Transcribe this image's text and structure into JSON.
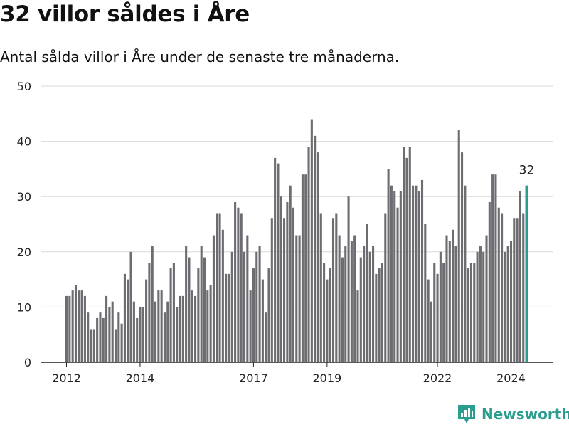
{
  "header": {
    "title": "32 villor såldes i Åre",
    "subtitle": "Antal sålda villor i Åre under de senaste tre månaderna."
  },
  "brand": {
    "name": "Newsworthy",
    "color": "#2a9d8f"
  },
  "chart_data": {
    "type": "bar",
    "title": "32 villor såldes i Åre",
    "subtitle": "Antal sålda villor i Åre under de senaste tre månaderna.",
    "xlabel": "",
    "ylabel": "",
    "ylim": [
      0,
      50
    ],
    "yticks": [
      0,
      10,
      20,
      30,
      40,
      50
    ],
    "xticks": [
      "2012",
      "2014",
      "2017",
      "2019",
      "2022",
      "2024"
    ],
    "grid": true,
    "legend": "none",
    "bar_color": "#6d6c71",
    "highlight_color": "#2a9d8f",
    "highlight_label": "32",
    "values": [
      12,
      12,
      13,
      14,
      13,
      13,
      12,
      9,
      6,
      6,
      8,
      9,
      8,
      12,
      10,
      11,
      6,
      9,
      7,
      16,
      15,
      20,
      11,
      8,
      10,
      10,
      15,
      18,
      21,
      11,
      13,
      13,
      9,
      11,
      17,
      18,
      10,
      12,
      12,
      21,
      19,
      13,
      12,
      17,
      21,
      19,
      13,
      14,
      23,
      27,
      27,
      24,
      16,
      16,
      20,
      29,
      28,
      27,
      20,
      23,
      13,
      17,
      20,
      21,
      15,
      9,
      17,
      26,
      37,
      36,
      30,
      26,
      29,
      32,
      28,
      23,
      23,
      34,
      34,
      39,
      44,
      41,
      38,
      27,
      18,
      15,
      17,
      26,
      27,
      23,
      19,
      21,
      30,
      22,
      23,
      13,
      19,
      21,
      25,
      20,
      21,
      16,
      17,
      18,
      27,
      35,
      32,
      31,
      28,
      31,
      39,
      37,
      39,
      32,
      32,
      31,
      33,
      25,
      15,
      11,
      18,
      16,
      20,
      18,
      23,
      22,
      24,
      21,
      42,
      38,
      32,
      17,
      18,
      18,
      20,
      21,
      20,
      23,
      29,
      34,
      34,
      28,
      27,
      20,
      21,
      22,
      26,
      26,
      31,
      27,
      32
    ]
  }
}
